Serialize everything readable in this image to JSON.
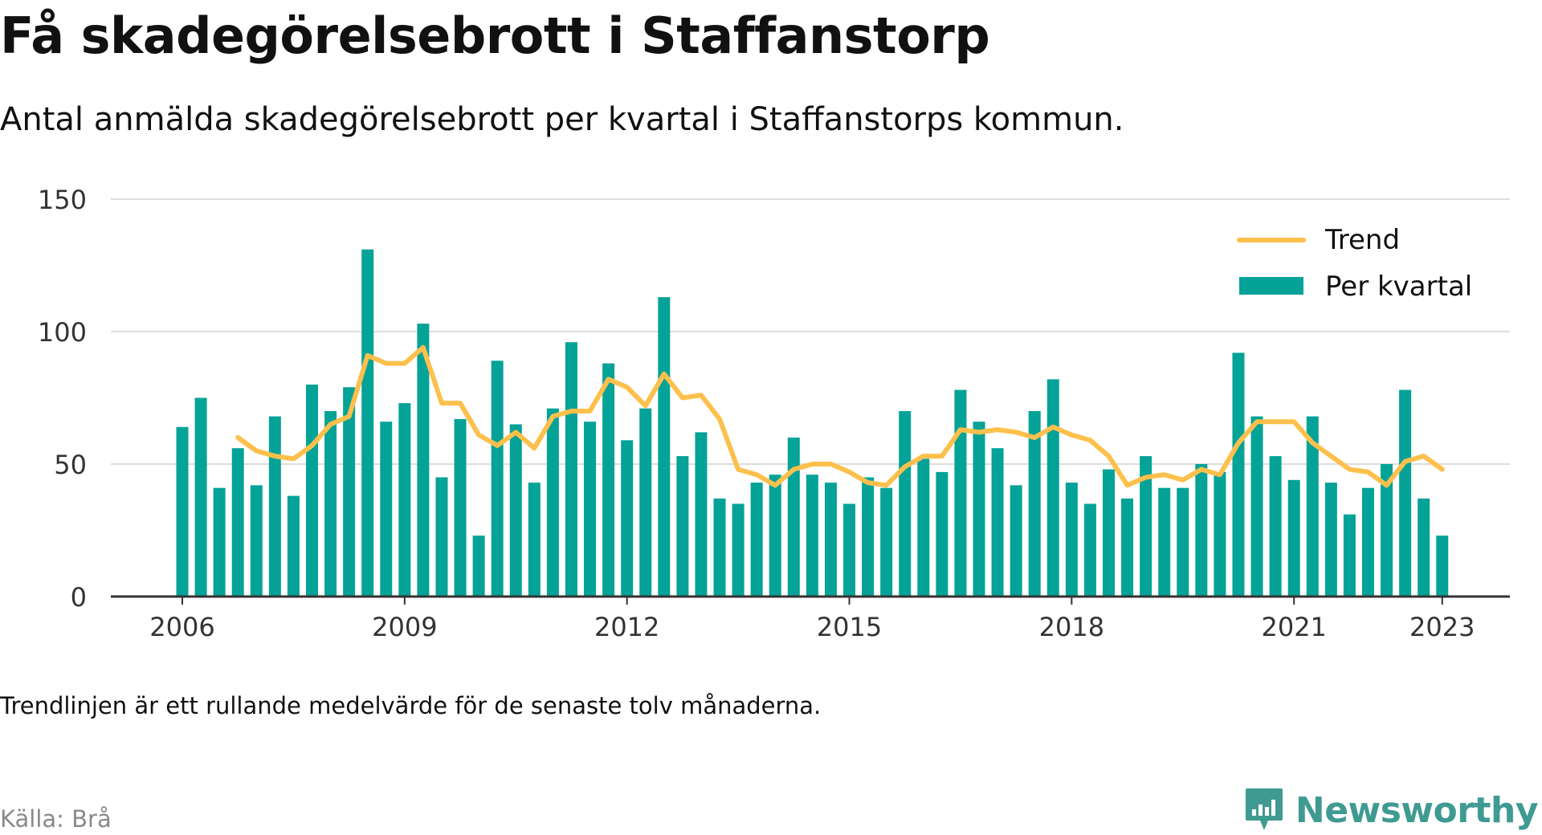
{
  "header": {
    "title": "Få skadegörelsebrott i Staffanstorp",
    "subtitle": "Antal anmälda skadegörelsebrott per kvartal i Staffanstorps kommun."
  },
  "footer": {
    "note": "Trendlinjen är ett rullande medelvärde för de senaste tolv månaderna.",
    "source": "Källa: Brå",
    "brand": "Newsworthy"
  },
  "colors": {
    "bars": "#05a297",
    "trend": "#fdc04c",
    "grid": "#dddddd",
    "axis": "#333333",
    "brand": "#3f9a92"
  },
  "chart_data": {
    "type": "bar",
    "x_start": "2006 Q1",
    "x_end": "2023 Q1",
    "x_ticks": [
      "2006",
      "2009",
      "2012",
      "2015",
      "2018",
      "2021",
      "2023"
    ],
    "y_ticks": [
      0,
      50,
      100,
      150
    ],
    "ylim": [
      0,
      150
    ],
    "grid": true,
    "legend_position": "top-right",
    "series": [
      {
        "name": "Per kvartal",
        "type": "bar",
        "values": [
          64,
          75,
          41,
          56,
          42,
          68,
          38,
          80,
          70,
          79,
          131,
          66,
          73,
          103,
          45,
          67,
          23,
          89,
          65,
          43,
          71,
          96,
          66,
          88,
          59,
          71,
          113,
          53,
          62,
          37,
          35,
          43,
          46,
          60,
          46,
          43,
          35,
          45,
          41,
          70,
          52,
          47,
          78,
          66,
          56,
          42,
          70,
          82,
          43,
          35,
          48,
          37,
          53,
          41,
          41,
          50,
          47,
          92,
          68,
          53,
          44,
          68,
          43,
          31,
          41,
          50,
          78,
          37,
          23
        ]
      },
      {
        "name": "Trend",
        "type": "line",
        "values": [
          null,
          null,
          null,
          60,
          55,
          53,
          52,
          57,
          65,
          68,
          91,
          88,
          88,
          94,
          73,
          73,
          61,
          57,
          62,
          56,
          68,
          70,
          70,
          82,
          79,
          72,
          84,
          75,
          76,
          67,
          48,
          46,
          42,
          48,
          50,
          50,
          47,
          43,
          42,
          49,
          53,
          53,
          63,
          62,
          63,
          62,
          60,
          64,
          61,
          59,
          53,
          42,
          45,
          46,
          44,
          48,
          46,
          58,
          66,
          66,
          66,
          58,
          53,
          48,
          47,
          42,
          51,
          53,
          48
        ]
      }
    ]
  }
}
